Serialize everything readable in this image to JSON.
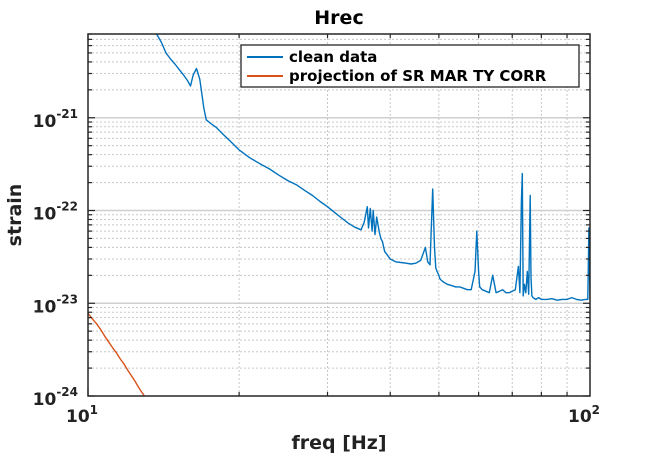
{
  "chart_data": {
    "type": "line",
    "title": "Hrec",
    "xlabel": "freq [Hz]",
    "ylabel": "strain",
    "xscale": "log",
    "yscale": "log",
    "xlim": [
      10,
      100
    ],
    "ylim": [
      1e-24,
      8e-21
    ],
    "grid": true,
    "legend_position": "top-right",
    "x_ticks": [
      {
        "value": 10,
        "base": "10",
        "exp": "1"
      },
      {
        "value": 100,
        "base": "10",
        "exp": "2"
      }
    ],
    "y_ticks": [
      {
        "value": 1e-24,
        "base": "10",
        "exp": "-24"
      },
      {
        "value": 1e-23,
        "base": "10",
        "exp": "-23"
      },
      {
        "value": 1e-22,
        "base": "10",
        "exp": "-22"
      },
      {
        "value": 1e-21,
        "base": "10",
        "exp": "-21"
      }
    ],
    "series": [
      {
        "name": "clean data",
        "color": "#0072bd",
        "x": [
          13.7,
          14.0,
          14.3,
          14.6,
          14.9,
          15.2,
          15.5,
          15.8,
          16.0,
          16.2,
          16.45,
          16.7,
          17.0,
          17.2,
          17.6,
          18.0,
          18.6,
          19.2,
          20.0,
          21.0,
          22.0,
          23.0,
          24.0,
          25.0,
          26.0,
          27.0,
          28.0,
          29.0,
          30.0,
          31.0,
          32.0,
          33.0,
          34.0,
          35.0,
          35.5,
          36.0,
          36.2,
          36.5,
          36.8,
          37.0,
          37.3,
          37.6,
          38.0,
          38.3,
          38.6,
          39.0,
          39.5,
          40.0,
          41.0,
          42.0,
          43.0,
          44.0,
          45.0,
          46.0,
          47.0,
          47.5,
          48.0,
          48.3,
          48.6,
          49.0,
          49.3,
          49.6,
          50.0,
          50.2,
          50.4,
          51.0,
          52.0,
          53.0,
          54.0,
          55.0,
          56.0,
          57.0,
          58.0,
          59.0,
          59.5,
          60.0,
          60.3,
          61.0,
          62.0,
          63.0,
          64.0,
          65.0,
          66.0,
          67.0,
          68.0,
          69.0,
          70.0,
          71.0,
          72.0,
          72.5,
          73.0,
          73.3,
          73.6,
          74.0,
          74.5,
          75.0,
          75.5,
          76.0,
          76.3,
          76.6,
          77.0,
          78.0,
          79.0,
          80.0,
          82.0,
          84.0,
          86.0,
          88.0,
          90.0,
          92.0,
          94.0,
          96.0,
          98.0,
          99.0,
          99.5,
          100.0
        ],
        "y": [
          8e-21,
          6.5e-21,
          5e-21,
          4.3e-21,
          3.8e-21,
          3.3e-21,
          2.9e-21,
          2.5e-21,
          2.2e-21,
          2.9e-21,
          3.4e-21,
          2.6e-21,
          1.3e-21,
          9.5e-22,
          8.6e-22,
          7.9e-22,
          6.6e-22,
          5.6e-22,
          4.5e-22,
          3.7e-22,
          3.2e-22,
          2.8e-22,
          2.4e-22,
          2.1e-22,
          1.9e-22,
          1.65e-22,
          1.45e-22,
          1.25e-22,
          1.1e-22,
          9.5e-23,
          8.3e-23,
          7.3e-23,
          6.6e-23,
          6.2e-23,
          7.5e-23,
          1.1e-22,
          6.5e-23,
          1.05e-22,
          6e-23,
          1e-22,
          5.5e-23,
          8.5e-23,
          6e-23,
          5e-23,
          4.6e-23,
          3.6e-23,
          3.3e-23,
          3e-23,
          2.8e-23,
          2.75e-23,
          2.7e-23,
          2.65e-23,
          2.7e-23,
          2.9e-23,
          4e-23,
          2.8e-23,
          2.6e-23,
          6.5e-23,
          1.7e-22,
          4e-23,
          2.4e-23,
          2.2e-23,
          2e-23,
          1.85e-23,
          1.8e-23,
          1.7e-23,
          1.6e-23,
          1.55e-23,
          1.5e-23,
          1.5e-23,
          1.45e-23,
          1.4e-23,
          1.4e-23,
          2.2e-23,
          6e-23,
          2.2e-23,
          1.5e-23,
          1.4e-23,
          1.35e-23,
          1.3e-23,
          2e-23,
          1.3e-23,
          1.35e-23,
          1.4e-23,
          1.3e-23,
          1.3e-23,
          1.35e-23,
          1.4e-23,
          2.5e-23,
          1.3e-23,
          1.25e-22,
          2.5e-22,
          1.2e-23,
          1.6e-23,
          1.3e-23,
          2.2e-23,
          1.25e-23,
          1.45e-22,
          1.9e-23,
          1.2e-23,
          1.15e-23,
          1.1e-23,
          1.15e-23,
          1.1e-23,
          1.1e-23,
          1.12e-23,
          1.08e-23,
          1.1e-23,
          1.1e-23,
          1.15e-23,
          1.1e-23,
          1.08e-23,
          1.1e-23,
          1.1e-23,
          6.5e-23,
          1.1e-23
        ]
      },
      {
        "name": "projection of SR MAR TY CORR",
        "color": "#d95319",
        "x": [
          10.0,
          10.2,
          10.4,
          10.6,
          10.8,
          11.0,
          11.2,
          11.4,
          11.6,
          11.8,
          12.0,
          12.2,
          12.4,
          12.6,
          12.8,
          12.95
        ],
        "y": [
          7.8e-24,
          6.8e-24,
          6e-24,
          5.2e-24,
          4.4e-24,
          3.8e-24,
          3.3e-24,
          2.9e-24,
          2.5e-24,
          2.2e-24,
          1.9e-24,
          1.65e-24,
          1.45e-24,
          1.25e-24,
          1.1e-24,
          1e-24
        ]
      }
    ]
  }
}
